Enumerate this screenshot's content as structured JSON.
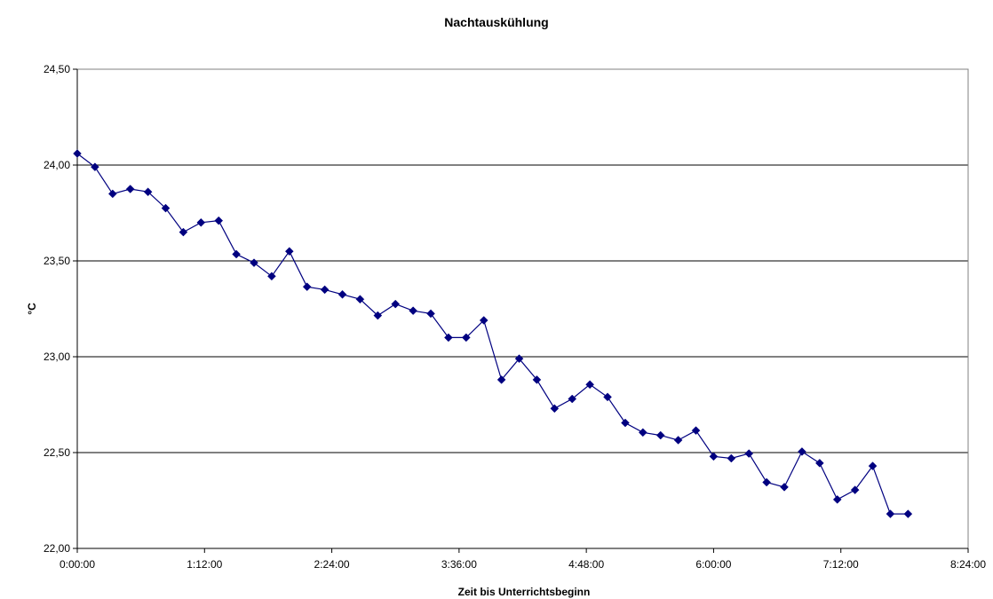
{
  "chart_data": {
    "type": "line",
    "title": "Nachtauskühlung",
    "xlabel": "Zeit bis Unterrichtsbeginn",
    "ylabel": "°C",
    "x_unit": "minutes",
    "xlim": [
      0,
      504
    ],
    "ylim": [
      22.0,
      24.5
    ],
    "x_ticks": [
      {
        "value": 0,
        "label": "0:00:00"
      },
      {
        "value": 72,
        "label": "1:12:00"
      },
      {
        "value": 144,
        "label": "2:24:00"
      },
      {
        "value": 216,
        "label": "3:36:00"
      },
      {
        "value": 288,
        "label": "4:48:00"
      },
      {
        "value": 360,
        "label": "6:00:00"
      },
      {
        "value": 432,
        "label": "7:12:00"
      },
      {
        "value": 504,
        "label": "8:24:00"
      }
    ],
    "y_ticks": [
      {
        "value": 22.0,
        "label": "22,00"
      },
      {
        "value": 22.5,
        "label": "22,50"
      },
      {
        "value": 23.0,
        "label": "23,00"
      },
      {
        "value": 23.5,
        "label": "23,50"
      },
      {
        "value": 24.0,
        "label": "24,00"
      },
      {
        "value": 24.5,
        "label": "24,50"
      }
    ],
    "grid": "horizontal",
    "legend": "none",
    "line_color": "#000080",
    "marker": "diamond",
    "series": [
      {
        "x": [
          0,
          10,
          20,
          30,
          40,
          50,
          60,
          70,
          80,
          90,
          100,
          110,
          120,
          130,
          140,
          150,
          160,
          170,
          180,
          190,
          200,
          210,
          220,
          230,
          240,
          250,
          260,
          270,
          280,
          290,
          300,
          310,
          320,
          330,
          340,
          350,
          360,
          370,
          380,
          390,
          400,
          410,
          420,
          430,
          440,
          450,
          460,
          470
        ],
        "values": [
          24.06,
          23.99,
          23.85,
          23.875,
          23.86,
          23.775,
          23.65,
          23.7,
          23.71,
          23.535,
          23.49,
          23.42,
          23.55,
          23.365,
          23.35,
          23.325,
          23.3,
          23.215,
          23.275,
          23.24,
          23.225,
          23.1,
          23.1,
          23.19,
          22.88,
          22.99,
          22.88,
          22.73,
          22.78,
          22.855,
          22.79,
          22.655,
          22.605,
          22.59,
          22.565,
          22.615,
          22.48,
          22.47,
          22.495,
          22.345,
          22.32,
          22.505,
          22.445,
          22.255,
          22.305,
          22.43,
          22.18,
          22.18
        ]
      }
    ]
  }
}
